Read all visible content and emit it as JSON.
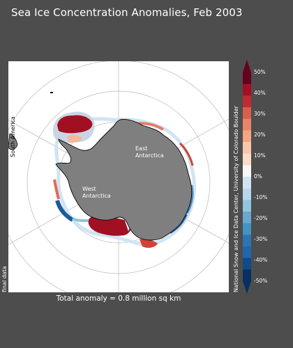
{
  "title": "Sea Ice Concentration Anomalies, Feb 2003",
  "map": {
    "labels": {
      "south_america": "South America",
      "east_antarctica": "East\nAntarctica",
      "west_antarctica": "West\nAntarctica"
    }
  },
  "side_note": "final data",
  "credit": "National Snow and Ice Data Center, University of Colorado Boulder",
  "total_anomaly": "Total anomaly = 0.8 million sq km",
  "colorbar": {
    "ticks": [
      "50%",
      "40%",
      "30%",
      "20%",
      "10%",
      "0%",
      "-10%",
      "-20%",
      "-30%",
      "-40%",
      "-50%"
    ],
    "colors": [
      "#67001f",
      "#a50f24",
      "#c22a33",
      "#d6604d",
      "#e7856a",
      "#f4a582",
      "#f8c7ab",
      "#fddbc7",
      "#f7f7f7",
      "#d1e5f0",
      "#b8d8ea",
      "#92c5de",
      "#6aa8cf",
      "#4393c3",
      "#2f74b2",
      "#2166ac",
      "#0f4b86",
      "#053061"
    ],
    "low_cap": "#053061",
    "high_cap": "#67001f"
  },
  "colors": {
    "background": "#4d4d4d",
    "land": "#7f7f7f",
    "ocean": "#ffffff"
  }
}
